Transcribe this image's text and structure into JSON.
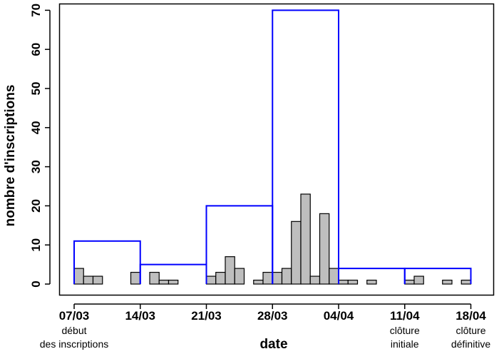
{
  "chart_data": {
    "type": "bar",
    "xlabel": "date",
    "ylabel": "nombre d'inscriptions",
    "ylim": [
      0,
      70
    ],
    "y_ticks": [
      0,
      10,
      20,
      30,
      40,
      50,
      60,
      70
    ],
    "x_ticks": [
      "07/03",
      "14/03",
      "21/03",
      "28/03",
      "04/04",
      "11/04",
      "18/04"
    ],
    "annotations": [
      {
        "at": "07/03",
        "lines": [
          "début",
          "des inscriptions"
        ]
      },
      {
        "at": "11/04",
        "lines": [
          "clôture",
          "initiale"
        ]
      },
      {
        "at": "18/04",
        "lines": [
          "clôture",
          "définitive"
        ]
      }
    ],
    "series": [
      {
        "kind": "daily",
        "color": "#bebebe",
        "start": "07/03",
        "values": [
          4,
          2,
          2,
          0,
          0,
          0,
          3,
          0,
          3,
          1,
          1,
          0,
          0,
          0,
          2,
          3,
          7,
          4,
          0,
          1,
          3,
          3,
          4,
          16,
          23,
          2,
          18,
          4,
          1,
          1,
          0,
          1,
          0,
          0,
          0,
          1,
          2,
          0,
          0,
          1,
          0,
          1,
          0
        ]
      },
      {
        "kind": "weekly",
        "color": "#0000ff",
        "intervals": [
          {
            "from": "07/03",
            "to": "14/03",
            "value": 11
          },
          {
            "from": "14/03",
            "to": "21/03",
            "value": 5
          },
          {
            "from": "21/03",
            "to": "28/03",
            "value": 20
          },
          {
            "from": "28/03",
            "to": "04/04",
            "value": 70
          },
          {
            "from": "04/04",
            "to": "11/04",
            "value": 4
          },
          {
            "from": "11/04",
            "to": "18/04",
            "value": 4
          }
        ]
      }
    ]
  }
}
